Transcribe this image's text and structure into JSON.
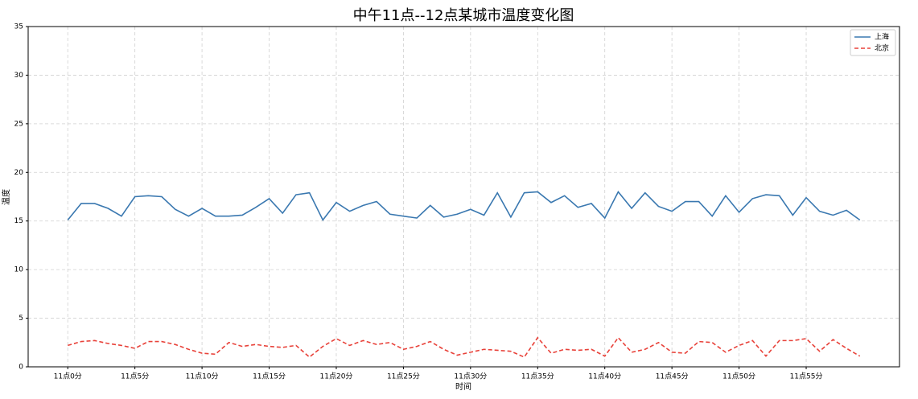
{
  "chart_data": {
    "type": "line",
    "title": "中午11点--12点某城市温度变化图",
    "x_label": "时间",
    "y_label": "温度",
    "x": [
      0,
      1,
      2,
      3,
      4,
      5,
      6,
      7,
      8,
      9,
      10,
      11,
      12,
      13,
      14,
      15,
      16,
      17,
      18,
      19,
      20,
      21,
      22,
      23,
      24,
      25,
      26,
      27,
      28,
      29,
      30,
      31,
      32,
      33,
      34,
      35,
      36,
      37,
      38,
      39,
      40,
      41,
      42,
      43,
      44,
      45,
      46,
      47,
      48,
      49,
      50,
      51,
      52,
      53,
      54,
      55,
      56,
      57,
      58,
      59
    ],
    "series": [
      {
        "name": "上海",
        "color": "#3a78b0",
        "dash": "solid",
        "values": [
          15.1,
          16.8,
          16.8,
          16.3,
          15.5,
          17.5,
          17.6,
          17.5,
          16.2,
          15.5,
          16.3,
          15.5,
          15.5,
          15.6,
          16.4,
          17.3,
          15.8,
          17.7,
          17.9,
          15.1,
          16.9,
          16.0,
          16.6,
          17.0,
          15.7,
          15.5,
          15.3,
          16.6,
          15.4,
          15.7,
          16.2,
          15.6,
          17.9,
          15.4,
          17.9,
          18.0,
          16.9,
          17.6,
          16.4,
          16.8,
          15.3,
          18.0,
          16.3,
          17.9,
          16.5,
          16.0,
          17.0,
          17.0,
          15.5,
          17.6,
          15.9,
          17.3,
          17.7,
          17.6,
          15.6,
          17.4,
          16.0,
          15.6,
          16.1,
          15.1
        ]
      },
      {
        "name": "北京",
        "color": "#e8423a",
        "dash": "dashed",
        "values": [
          2.2,
          2.6,
          2.7,
          2.4,
          2.2,
          1.9,
          2.6,
          2.6,
          2.3,
          1.8,
          1.4,
          1.3,
          2.5,
          2.1,
          2.3,
          2.1,
          2.0,
          2.2,
          1.0,
          2.1,
          2.9,
          2.2,
          2.7,
          2.3,
          2.5,
          1.8,
          2.1,
          2.6,
          1.8,
          1.2,
          1.5,
          1.8,
          1.7,
          1.6,
          1.0,
          3.0,
          1.4,
          1.8,
          1.7,
          1.8,
          1.1,
          3.0,
          1.5,
          1.8,
          2.5,
          1.5,
          1.4,
          2.6,
          2.5,
          1.5,
          2.2,
          2.7,
          1.1,
          2.7,
          2.7,
          2.9,
          1.6,
          2.8,
          1.9,
          1.1
        ]
      }
    ],
    "xlim": [
      -2.95,
      61.95
    ],
    "xticks": [
      {
        "value": 0,
        "label": "11点0分"
      },
      {
        "value": 5,
        "label": "11点5分"
      },
      {
        "value": 10,
        "label": "11点10分"
      },
      {
        "value": 15,
        "label": "11点15分"
      },
      {
        "value": 20,
        "label": "11点20分"
      },
      {
        "value": 25,
        "label": "11点25分"
      },
      {
        "value": 30,
        "label": "11点30分"
      },
      {
        "value": 35,
        "label": "11点35分"
      },
      {
        "value": 40,
        "label": "11点40分"
      },
      {
        "value": 45,
        "label": "11点45分"
      },
      {
        "value": 50,
        "label": "11点50分"
      },
      {
        "value": 55,
        "label": "11点55分"
      }
    ],
    "ylim": [
      0,
      35
    ],
    "yticks": [
      0,
      5,
      10,
      15,
      20,
      25,
      30,
      35
    ],
    "grid": true,
    "legend": "upper right"
  }
}
